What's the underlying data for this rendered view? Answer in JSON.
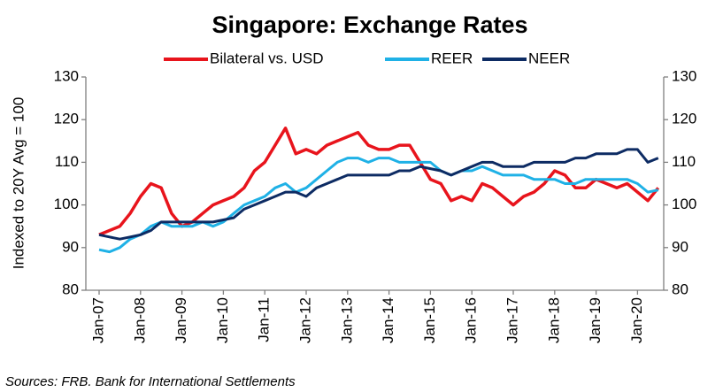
{
  "chart_data": {
    "type": "line",
    "title": "Singapore: Exchange Rates",
    "y_label": "Indexed to 20Y Avg = 100",
    "source": "Sources: FRB. Bank for International Settlements",
    "categories": [
      "Jan-07",
      null,
      null,
      null,
      "Jan-08",
      null,
      null,
      null,
      "Jan-09",
      null,
      null,
      null,
      "Jan-10",
      null,
      null,
      null,
      "Jan-11",
      null,
      null,
      null,
      "Jan-12",
      null,
      null,
      null,
      "Jan-13",
      null,
      null,
      null,
      "Jan-14",
      null,
      null,
      null,
      "Jan-15",
      null,
      null,
      null,
      "Jan-16",
      null,
      null,
      null,
      "Jan-17",
      null,
      null,
      null,
      "Jan-18",
      null,
      null,
      null,
      "Jan-19",
      null,
      null,
      null,
      "Jan-20",
      null,
      null
    ],
    "series": [
      {
        "name": "Bilateral vs. USD",
        "color": "#e8141c",
        "values": [
          93,
          94,
          95,
          98,
          102,
          105,
          104,
          98,
          95,
          96,
          98,
          100,
          101,
          102,
          104,
          108,
          110,
          114,
          118,
          112,
          113,
          112,
          114,
          115,
          116,
          117,
          114,
          113,
          113,
          114,
          114,
          110,
          106,
          105,
          101,
          102,
          101,
          105,
          104,
          102,
          100,
          102,
          103,
          105,
          108,
          107,
          104,
          104,
          106,
          105,
          104,
          105,
          103,
          101,
          104
        ]
      },
      {
        "name": "REER",
        "color": "#1fb1e6",
        "values": [
          89.5,
          89,
          90,
          92,
          93,
          95,
          96,
          95,
          95,
          95,
          96,
          95,
          96,
          98,
          100,
          101,
          102,
          104,
          105,
          103,
          104,
          106,
          108,
          110,
          111,
          111,
          110,
          111,
          111,
          110,
          110,
          110,
          110,
          108,
          107,
          108,
          108,
          109,
          108,
          107,
          107,
          107,
          106,
          106,
          106,
          105,
          105,
          106,
          106,
          106,
          106,
          106,
          105,
          103,
          103.5
        ]
      },
      {
        "name": "NEER",
        "color": "#0d2b63",
        "values": [
          93,
          92.5,
          92,
          92.5,
          93,
          94,
          96,
          96,
          96,
          96,
          96,
          96,
          96.5,
          97,
          99,
          100,
          101,
          102,
          103,
          103,
          102,
          104,
          105,
          106,
          107,
          107,
          107,
          107,
          107,
          108,
          108,
          109,
          108.5,
          108,
          107,
          108,
          109,
          110,
          110,
          109,
          109,
          109,
          110,
          110,
          110,
          110,
          111,
          111,
          112,
          112,
          112,
          113,
          113,
          110,
          111
        ]
      }
    ],
    "ylim": [
      80,
      130
    ],
    "yticks": [
      80,
      90,
      100,
      110,
      120,
      130
    ],
    "y2lim": [
      80,
      130
    ],
    "y2ticks": [
      80,
      90,
      100,
      110,
      120,
      130
    ]
  }
}
